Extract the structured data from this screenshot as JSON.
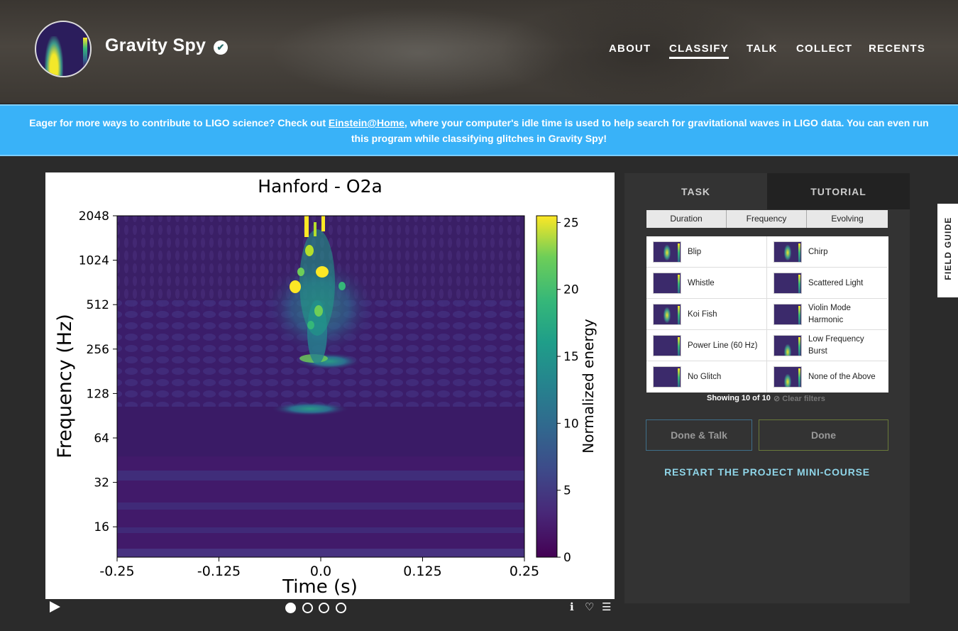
{
  "header": {
    "brand": "Gravity Spy",
    "nav": [
      {
        "label": "ABOUT",
        "active": false
      },
      {
        "label": "CLASSIFY",
        "active": true
      },
      {
        "label": "TALK",
        "active": false
      },
      {
        "label": "COLLECT",
        "active": false
      },
      {
        "label": "RECENTS",
        "active": false
      }
    ]
  },
  "banner": {
    "prefix": "Eager for more ways to contribute to LIGO science? Check out ",
    "link": "Einstein@Home",
    "suffix": ", where your computer's idle time is used to help search for gravitational waves in LIGO data. You can even run this program while classifying glitches in Gravity Spy!"
  },
  "subject": {
    "controls": {
      "frame_count": 4,
      "active_frame": 0
    }
  },
  "chart_data": {
    "type": "heatmap",
    "title": "Hanford - O2a",
    "xlabel": "Time (s)",
    "ylabel": "Frequency (Hz)",
    "x_ticks": [
      "-0.25",
      "-0.125",
      "0.0",
      "0.125",
      "0.25"
    ],
    "y_ticks": [
      "2048",
      "1024",
      "512",
      "256",
      "128",
      "64",
      "32",
      "16"
    ],
    "y_scale": "log2",
    "xlim": [
      -0.25,
      0.25
    ],
    "colorbar": {
      "label": "Normalized energy",
      "ticks": [
        "25",
        "20",
        "15",
        "10",
        "5",
        "0"
      ],
      "range": [
        0,
        25.5
      ],
      "colormap": "viridis"
    }
  },
  "task": {
    "tabs": [
      "TASK",
      "TUTORIAL"
    ],
    "filters": [
      "Duration",
      "Frequency",
      "Evolving"
    ],
    "choices": [
      "Blip",
      "Chirp",
      "Whistle",
      "Scattered Light",
      "Koi Fish",
      "Violin Mode Harmonic",
      "Power Line (60 Hz)",
      "Low Frequency Burst",
      "No Glitch",
      "None of the Above"
    ],
    "showing": "Showing 10 of 10",
    "clear_filters": "Clear filters",
    "done_talk": "Done & Talk",
    "done": "Done",
    "restart": "RESTART THE PROJECT MINI-COURSE"
  },
  "field_guide": "FIELD GUIDE"
}
